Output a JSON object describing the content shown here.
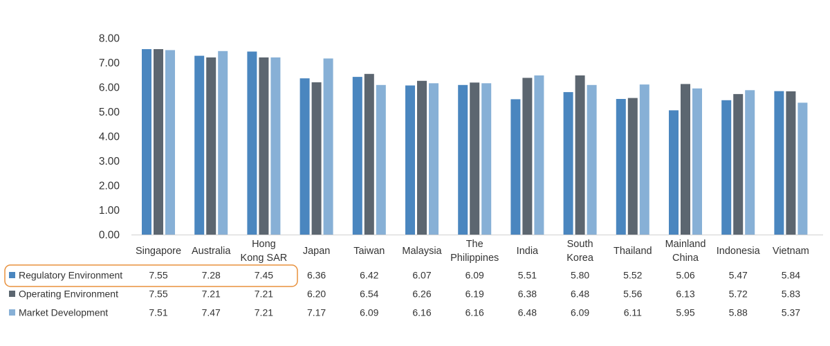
{
  "chart_data": {
    "type": "bar",
    "title": "",
    "xlabel": "",
    "ylabel": "",
    "ylim": [
      0,
      8
    ],
    "y_ticks": [
      "0.00",
      "1.00",
      "2.00",
      "3.00",
      "4.00",
      "5.00",
      "6.00",
      "7.00",
      "8.00"
    ],
    "grid": false,
    "legend_placement": "table-below",
    "categories": [
      [
        "Singapore"
      ],
      [
        "Australia"
      ],
      [
        "Hong",
        "Kong SAR"
      ],
      [
        "Japan"
      ],
      [
        "Taiwan"
      ],
      [
        "Malaysia"
      ],
      [
        "The",
        "Philippines"
      ],
      [
        "India"
      ],
      [
        "South",
        "Korea"
      ],
      [
        "Thailand"
      ],
      [
        "Mainland",
        "China"
      ],
      [
        "Indonesia"
      ],
      [
        "Vietnam"
      ]
    ],
    "series": [
      {
        "name": "Regulatory Environment",
        "color": "#4a86bf",
        "values": [
          7.55,
          7.28,
          7.45,
          6.36,
          6.42,
          6.07,
          6.09,
          5.51,
          5.8,
          5.52,
          5.06,
          5.47,
          5.84
        ],
        "labels": [
          "7.55",
          "7.28",
          "7.45",
          "6.36",
          "6.42",
          "6.07",
          "6.09",
          "5.51",
          "5.80",
          "5.52",
          "5.06",
          "5.47",
          "5.84"
        ]
      },
      {
        "name": "Operating Environment",
        "color": "#5c6670",
        "values": [
          7.55,
          7.21,
          7.21,
          6.2,
          6.54,
          6.26,
          6.19,
          6.38,
          6.48,
          5.56,
          6.13,
          5.72,
          5.83
        ],
        "labels": [
          "7.55",
          "7.21",
          "7.21",
          "6.20",
          "6.54",
          "6.26",
          "6.19",
          "6.38",
          "6.48",
          "5.56",
          "6.13",
          "5.72",
          "5.83"
        ]
      },
      {
        "name": "Market Development",
        "color": "#87b0d6",
        "values": [
          7.51,
          7.47,
          7.21,
          7.17,
          6.09,
          6.16,
          6.16,
          6.48,
          6.09,
          6.11,
          5.95,
          5.88,
          5.37
        ],
        "labels": [
          "7.51",
          "7.47",
          "7.21",
          "7.17",
          "6.09",
          "6.16",
          "6.16",
          "6.48",
          "6.09",
          "6.11",
          "5.95",
          "5.88",
          "5.37"
        ]
      }
    ],
    "highlight": {
      "series": "Regulatory Environment",
      "categories": [
        "Singapore",
        "Australia",
        "Hong Kong SAR"
      ],
      "color": "#e8903c"
    }
  }
}
